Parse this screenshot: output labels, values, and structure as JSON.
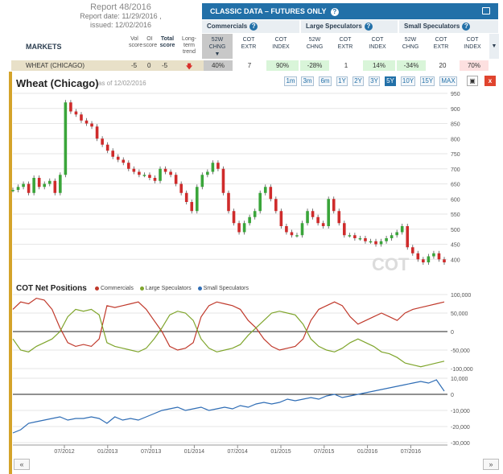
{
  "report": {
    "title": "Report 48/2016",
    "date": "Report date: 11/29/2016 ,",
    "issued": "issued: 12/02/2016"
  },
  "markets_label": "MARKETS",
  "columns": {
    "vol": [
      "Vol",
      "score"
    ],
    "oi": [
      "OI",
      "score"
    ],
    "total": [
      "Total",
      "score"
    ],
    "trend": [
      "Long-term",
      "trend"
    ]
  },
  "classic": {
    "title": "CLASSIC DATA – FUTURES ONLY",
    "help": "?"
  },
  "groups": [
    {
      "label": "Commercials",
      "help": "?"
    },
    {
      "label": "Large Speculators",
      "help": "?"
    },
    {
      "label": "Small Speculators",
      "help": "?"
    }
  ],
  "subcols": [
    [
      "52W",
      "CHNG"
    ],
    [
      "COT",
      "EXTR"
    ],
    [
      "COT",
      "INDEX"
    ],
    [
      "52W",
      "CHNG"
    ],
    [
      "COT",
      "EXTR"
    ],
    [
      "COT",
      "INDEX"
    ],
    [
      "52W",
      "CHNG"
    ],
    [
      "COT",
      "EXTR"
    ],
    [
      "COT",
      "INDEX"
    ]
  ],
  "row": {
    "market": "WHEAT (CHICAGO)",
    "vol": "-5",
    "oi": "0",
    "total": "-5",
    "trend_icon": "arrow-down-icon",
    "values": [
      "40%",
      "7",
      "90%",
      "-28%",
      "1",
      "14%",
      "-34%",
      "20",
      "70%"
    ]
  },
  "chart": {
    "title": "Wheat (Chicago)",
    "asof": "as of 12/02/2016",
    "ranges": [
      "1m",
      "3m",
      "6m",
      "1Y",
      "2Y",
      "3Y",
      "5Y",
      "10Y",
      "15Y",
      "MAX"
    ],
    "active_range": "5Y",
    "watermark": "COT"
  },
  "cot": {
    "title": "COT Net Positions",
    "legend": [
      {
        "name": "Commercials",
        "color": "#c0392b"
      },
      {
        "name": "Large Speculators",
        "color": "#7fa52c"
      },
      {
        "name": "Small Speculators",
        "color": "#2f6db5"
      }
    ]
  },
  "chart_data": {
    "type": "line",
    "title": "Wheat (Chicago)",
    "x_ticks": [
      "07/2012",
      "01/2013",
      "07/2013",
      "01/2014",
      "07/2014",
      "01/2015",
      "07/2015",
      "01/2016",
      "07/2016"
    ],
    "price": {
      "ylim": [
        350,
        950
      ],
      "y_ticks": [
        400,
        450,
        500,
        550,
        600,
        650,
        700,
        750,
        800,
        850,
        900,
        950
      ],
      "values": [
        630,
        640,
        650,
        620,
        670,
        640,
        650,
        660,
        620,
        680,
        920,
        890,
        880,
        860,
        850,
        840,
        800,
        780,
        760,
        740,
        730,
        720,
        700,
        690,
        680,
        680,
        670,
        660,
        700,
        690,
        680,
        650,
        620,
        590,
        560,
        640,
        680,
        690,
        720,
        700,
        620,
        560,
        520,
        490,
        520,
        540,
        560,
        620,
        640,
        600,
        560,
        510,
        490,
        480,
        480,
        520,
        560,
        540,
        520,
        510,
        600,
        560,
        520,
        480,
        480,
        470,
        470,
        460,
        460,
        450,
        460,
        470,
        480,
        490,
        510,
        440,
        420,
        400,
        390,
        410,
        420,
        400,
        390
      ]
    },
    "commercials": {
      "ylim": [
        -100000,
        100000
      ],
      "y_ticks": [
        100000,
        50000,
        0,
        -50000,
        -100000
      ],
      "values": [
        60000,
        80000,
        75000,
        90000,
        85000,
        60000,
        10000,
        -30000,
        -40000,
        -35000,
        -40000,
        -20000,
        70000,
        65000,
        70000,
        75000,
        80000,
        60000,
        30000,
        0,
        -40000,
        -50000,
        -45000,
        -30000,
        40000,
        70000,
        80000,
        75000,
        70000,
        60000,
        30000,
        10000,
        -20000,
        -40000,
        -50000,
        -45000,
        -40000,
        -20000,
        30000,
        60000,
        70000,
        80000,
        70000,
        40000,
        20000,
        30000,
        40000,
        50000,
        40000,
        30000,
        50000,
        60000,
        65000,
        70000,
        75000,
        80000
      ]
    },
    "large_speculators": {
      "ylim": [
        -100000,
        100000
      ],
      "y_ticks": [
        100000,
        50000,
        0,
        -50000,
        -100000
      ],
      "values": [
        -20000,
        -50000,
        -55000,
        -40000,
        -30000,
        -20000,
        0,
        40000,
        60000,
        55000,
        60000,
        45000,
        -30000,
        -40000,
        -45000,
        -50000,
        -55000,
        -45000,
        -20000,
        10000,
        45000,
        55000,
        50000,
        30000,
        -20000,
        -45000,
        -55000,
        -50000,
        -45000,
        -35000,
        -10000,
        10000,
        30000,
        50000,
        55000,
        50000,
        45000,
        20000,
        -20000,
        -40000,
        -50000,
        -55000,
        -45000,
        -30000,
        -20000,
        -30000,
        -40000,
        -55000,
        -60000,
        -70000,
        -85000,
        -90000,
        -95000,
        -90000,
        -85000,
        -80000
      ]
    },
    "small_speculators": {
      "ylim": [
        -30000,
        10000
      ],
      "y_ticks": [
        10000,
        0,
        -10000,
        -20000,
        -30000
      ],
      "values": [
        -24000,
        -22000,
        -18000,
        -17000,
        -16000,
        -15000,
        -14000,
        -16000,
        -15000,
        -15000,
        -14000,
        -15000,
        -18000,
        -14000,
        -16000,
        -15000,
        -16000,
        -14000,
        -12000,
        -10000,
        -9000,
        -8000,
        -10000,
        -9000,
        -8000,
        -10000,
        -9000,
        -8000,
        -9000,
        -7000,
        -8000,
        -6000,
        -5000,
        -6000,
        -5000,
        -3000,
        -4000,
        -3000,
        -2000,
        -3000,
        -1000,
        0,
        -2000,
        -1000,
        0,
        1000,
        2000,
        3000,
        4000,
        5000,
        6000,
        7000,
        8000,
        7000,
        9000,
        2000
      ]
    },
    "legend": [
      "Commercials",
      "Large Speculators",
      "Small Speculators"
    ]
  }
}
